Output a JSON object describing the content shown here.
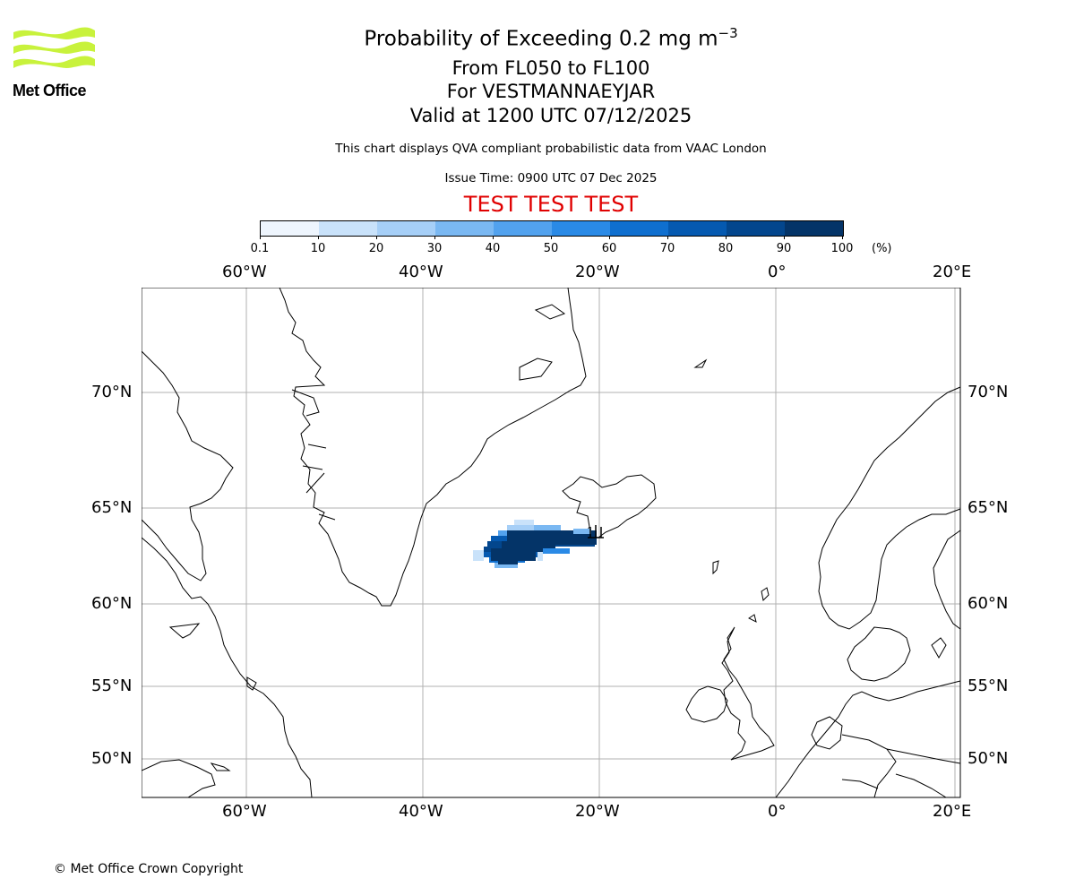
{
  "logo": {
    "text": "Met Office",
    "color": "#c8f23c"
  },
  "header": {
    "title_main": "Probability of Exceeding 0.2 mg m",
    "title_exp": "−3",
    "line2": "From FL050 to FL100",
    "line3": "For VESTMANNAEYJAR",
    "line4": "Valid at 1200 UTC 07/12/2025",
    "note": "This chart displays QVA compliant probabilistic data from VAAC London",
    "issue_time": "Issue Time: 0900 UTC 07 Dec 2025",
    "test_banner": "TEST TEST TEST",
    "test_color": "#e00000"
  },
  "colorbar": {
    "ticks": [
      "0.1",
      "10",
      "20",
      "30",
      "40",
      "50",
      "60",
      "70",
      "80",
      "90",
      "100"
    ],
    "unit": "(%)",
    "colors": [
      "#eef5fd",
      "#c9e2fa",
      "#a6cff7",
      "#7ab8f2",
      "#52a2ee",
      "#2a8ae6",
      "#0f6fcf",
      "#0559b0",
      "#03468d",
      "#043468"
    ]
  },
  "map": {
    "lon_labels": [
      "60°W",
      "40°W",
      "20°W",
      "0°",
      "20°E"
    ],
    "lat_labels": [
      "70°N",
      "65°N",
      "60°N",
      "55°N",
      "50°N"
    ],
    "source_marker": "volcano-source"
  },
  "footer": {
    "copyright": "© Met Office Crown Copyright"
  }
}
